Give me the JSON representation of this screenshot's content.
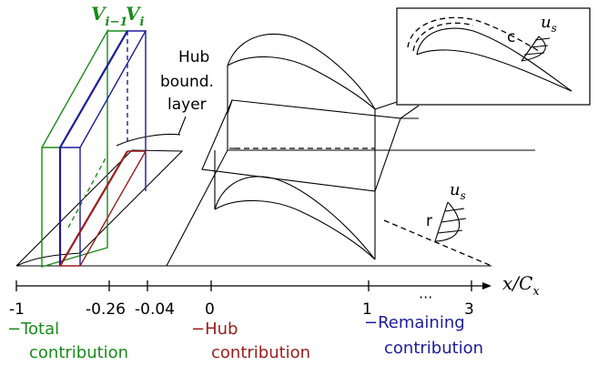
{
  "colors": {
    "total": "#1a8a1a",
    "hub": "#9b1c1c",
    "remaining": "#1c1c9b",
    "line": "#000000"
  },
  "labels": {
    "v_prev": "V",
    "v_prev_sub": "i−1",
    "v_curr": "V",
    "v_curr_sub": "i",
    "hub_line1": "Hub",
    "hub_line2": "bound.",
    "hub_line3": "layer",
    "axis_label": "x/C",
    "axis_label_sub": "x",
    "inset_c": "c",
    "inset_us": "u",
    "inset_us_sub": "s",
    "lower_r": "r",
    "lower_us": "u",
    "lower_us_sub": "s"
  },
  "axis": {
    "ticks": [
      "-1",
      "-0.26",
      "-0.04",
      "0",
      "1",
      "3"
    ],
    "ellipsis": "···"
  },
  "legend": {
    "total_dash": "−",
    "total_line1": "Total",
    "total_line2": "contribution",
    "hub_dash": "−",
    "hub_line1": "Hub",
    "hub_line2": "contribution",
    "remaining_dash": "−",
    "remaining_line1": "Remaining",
    "remaining_line2": "contribution"
  }
}
